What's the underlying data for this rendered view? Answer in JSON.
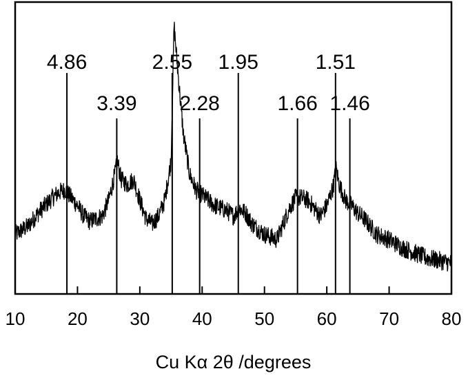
{
  "chart_data": {
    "type": "line",
    "title": "",
    "xlabel": "Cu Kα 2θ /degrees",
    "ylabel": "",
    "xlim": [
      10,
      80
    ],
    "x_ticks": [
      10,
      20,
      30,
      40,
      50,
      60,
      70,
      80
    ],
    "y_ticks_shown": false,
    "grid": false,
    "legend": "none",
    "series": [
      {
        "values_description": "XRD intensity (arbitrary units, 0 = baseline of plot box)",
        "x": [
          10,
          12,
          14,
          16,
          17,
          18,
          19,
          20,
          21,
          22,
          24,
          25,
          26,
          26.4,
          27,
          28,
          29,
          30,
          31,
          32,
          33,
          34,
          35,
          35.5,
          36,
          37,
          38,
          39,
          40,
          42,
          44,
          45,
          46,
          47,
          48,
          50,
          52,
          54,
          55,
          56,
          57,
          58,
          59,
          60,
          61,
          61.5,
          62,
          63,
          64,
          65,
          66,
          68,
          70,
          72,
          74,
          76,
          78,
          80
        ],
        "values": [
          0.17,
          0.2,
          0.26,
          0.31,
          0.33,
          0.34,
          0.31,
          0.28,
          0.24,
          0.22,
          0.24,
          0.3,
          0.4,
          0.45,
          0.38,
          0.36,
          0.38,
          0.3,
          0.23,
          0.21,
          0.24,
          0.3,
          0.45,
          0.97,
          0.82,
          0.55,
          0.4,
          0.34,
          0.32,
          0.28,
          0.26,
          0.24,
          0.27,
          0.25,
          0.21,
          0.17,
          0.15,
          0.27,
          0.31,
          0.31,
          0.3,
          0.27,
          0.24,
          0.28,
          0.35,
          0.42,
          0.36,
          0.3,
          0.28,
          0.25,
          0.23,
          0.17,
          0.15,
          0.12,
          0.1,
          0.08,
          0.07,
          0.06
        ]
      }
    ],
    "reference_lines": [
      {
        "x": 18.3,
        "label": "4.86",
        "tier": "high"
      },
      {
        "x": 26.3,
        "label": "3.39",
        "tier": "low"
      },
      {
        "x": 35.2,
        "label": "2.55",
        "tier": "high"
      },
      {
        "x": 39.6,
        "label": "2.28",
        "tier": "low"
      },
      {
        "x": 45.8,
        "label": "1.95",
        "tier": "high"
      },
      {
        "x": 55.3,
        "label": "1.66",
        "tier": "low"
      },
      {
        "x": 61.4,
        "label": "1.51",
        "tier": "high"
      },
      {
        "x": 63.7,
        "label": "1.46",
        "tier": "low"
      }
    ],
    "colors": {
      "line": "#000000",
      "background": "#ffffff"
    }
  }
}
